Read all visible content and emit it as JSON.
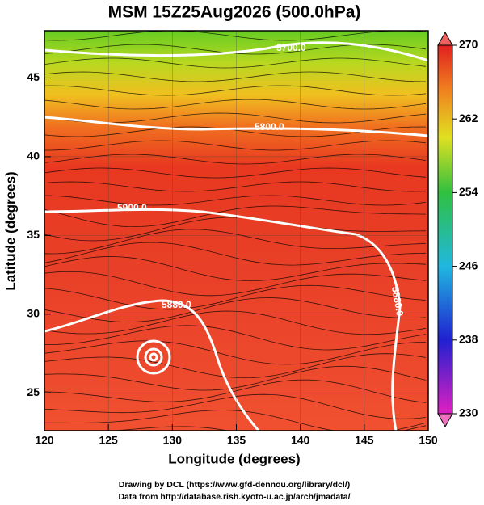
{
  "chart_data": {
    "type": "contour",
    "title": "MSM 15Z25Aug2026 (500.0hPa)",
    "x_label": "Longitude (degrees)",
    "y_label": "Latitude  (degrees)",
    "xlim": [
      120,
      150
    ],
    "xticks": [
      120,
      125,
      130,
      135,
      140,
      145,
      150
    ],
    "ylim": [
      22.6,
      48.0
    ],
    "yticks": [
      25,
      30,
      35,
      40,
      45
    ],
    "grid": true,
    "contour_labels": [
      "5700.0",
      "5800.0",
      "5900.0",
      "5880.0",
      "5880.0"
    ],
    "colorbar": {
      "lim": [
        230,
        270
      ],
      "ticks": [
        230,
        238,
        246,
        254,
        262,
        270
      ]
    },
    "footer": [
      "Drawing by DCL (https://www.gfd-dennou.org/library/dcl/)",
      "Data from http://database.rish.kyoto-u.ac.jp/arch/jmadata/"
    ]
  }
}
